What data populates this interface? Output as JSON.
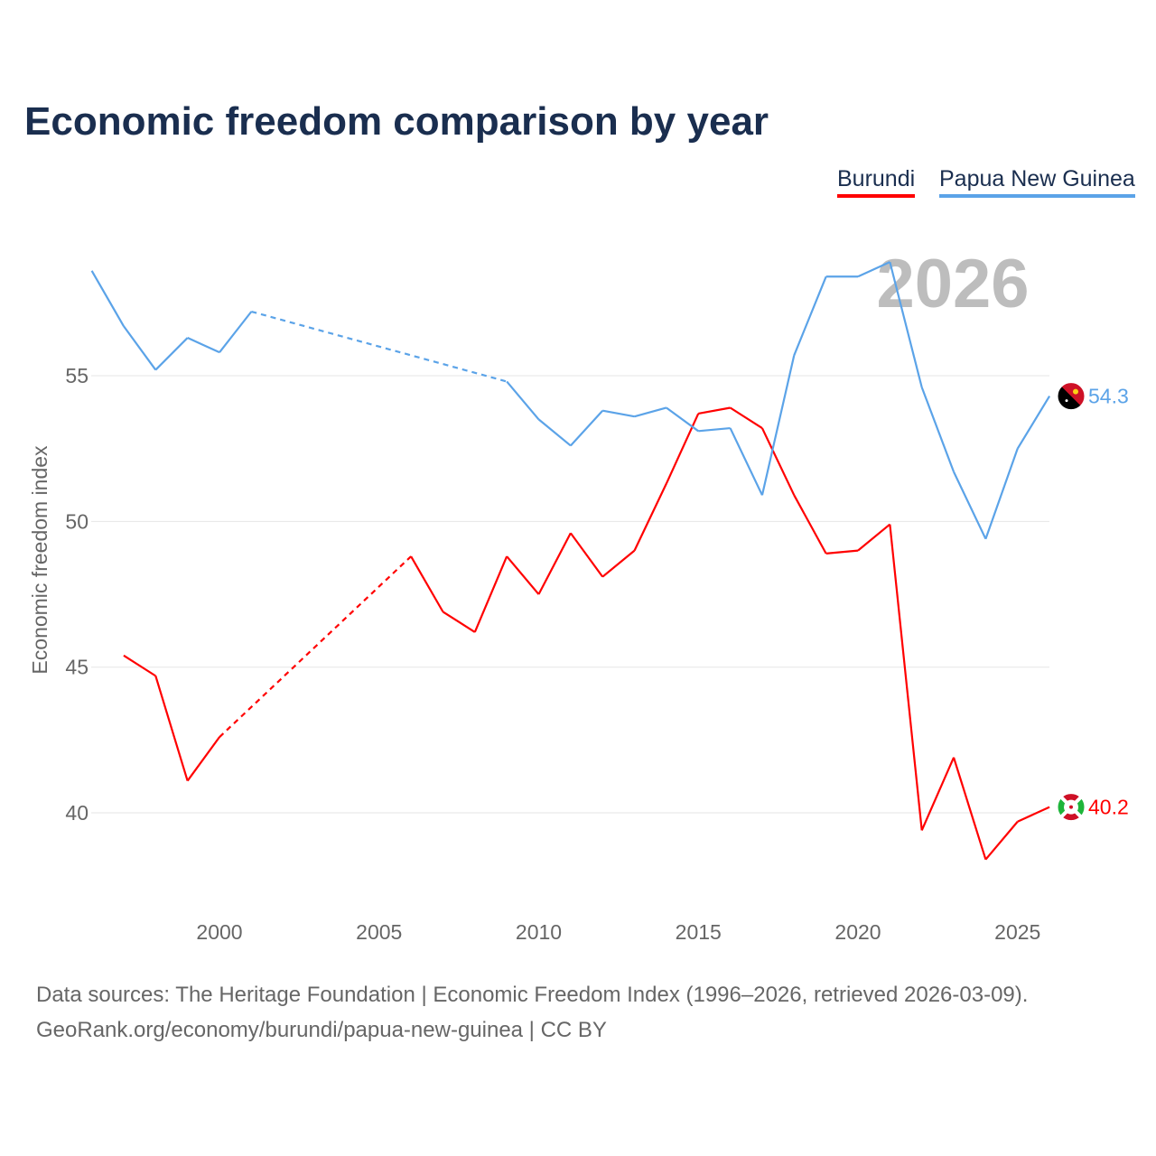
{
  "title": "Economic freedom comparison by year",
  "watermark_year": "2026",
  "source_line1": "Data sources: The Heritage Foundation | Economic Freedom Index (1996–2026, retrieved 2026-03-09).",
  "source_line2": "GeoRank.org/economy/burundi/papua-new-guinea | CC BY",
  "chart_data": {
    "type": "line",
    "title": "Economic freedom comparison by year",
    "ylabel": "Economic freedom index",
    "xlabel": "",
    "x": [
      1996,
      1997,
      1998,
      1999,
      2000,
      2001,
      2002,
      2003,
      2004,
      2005,
      2006,
      2007,
      2008,
      2009,
      2010,
      2011,
      2012,
      2013,
      2014,
      2015,
      2016,
      2017,
      2018,
      2019,
      2020,
      2021,
      2022,
      2023,
      2024,
      2025,
      2026
    ],
    "xticks": [
      2000,
      2005,
      2010,
      2015,
      2020,
      2025
    ],
    "yticks": [
      40,
      45,
      50,
      55
    ],
    "xlim": [
      1996,
      2026
    ],
    "ylim": [
      36.5,
      60
    ],
    "grid": true,
    "legend_position": "top-right",
    "series": [
      {
        "name": "Burundi",
        "color": "#ff0000",
        "end_label": "40.2",
        "flag": "burundi-flag",
        "values": [
          null,
          45.4,
          44.7,
          41.1,
          42.6,
          null,
          null,
          null,
          null,
          null,
          48.8,
          46.9,
          46.2,
          48.8,
          47.5,
          49.6,
          48.1,
          49.0,
          51.3,
          53.7,
          53.9,
          53.2,
          50.9,
          48.9,
          49.0,
          49.9,
          39.4,
          41.9,
          38.4,
          39.7,
          40.2
        ]
      },
      {
        "name": "Papua New Guinea",
        "color": "#5ba3e8",
        "end_label": "54.3",
        "flag": "png-flag",
        "values": [
          58.6,
          56.7,
          55.2,
          56.3,
          55.8,
          57.2,
          null,
          null,
          null,
          null,
          null,
          null,
          null,
          54.8,
          53.5,
          52.6,
          53.8,
          53.6,
          53.9,
          53.1,
          53.2,
          50.9,
          55.7,
          58.4,
          58.4,
          58.9,
          54.6,
          51.7,
          49.4,
          52.5,
          54.3
        ]
      }
    ]
  }
}
